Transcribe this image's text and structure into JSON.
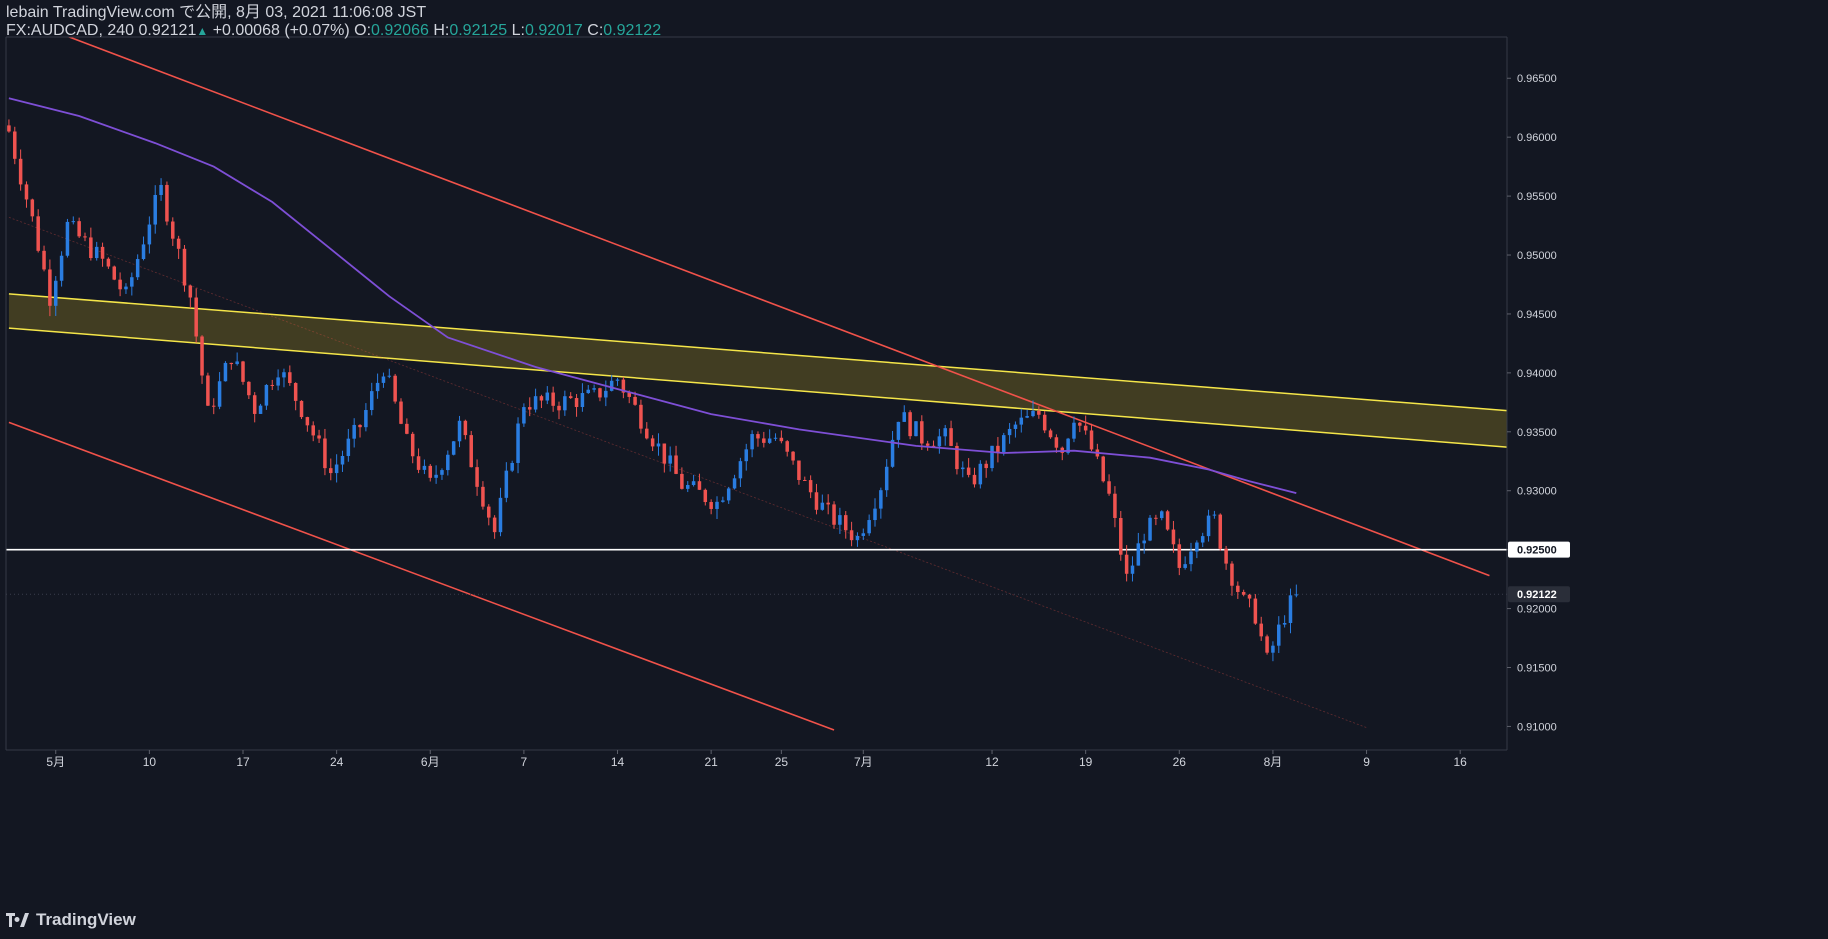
{
  "header": {
    "publish_line": "lebain TradingView.com で公開, 8月 03, 2021 11:06:08 JST",
    "symbol": "FX:AUDCAD, 240",
    "last": "0.92121",
    "change": "+0.00068 (+0.07%)",
    "o_label": "O:",
    "o_value": "0.92066",
    "h_label": "H:",
    "h_value": "0.92125",
    "l_label": "L:",
    "l_value": "0.92017",
    "c_label": "C:",
    "c_value": "0.92122"
  },
  "footer": {
    "brand": "TradingView"
  },
  "colors": {
    "background": "#131722",
    "bull": "#2a7de1",
    "bear": "#ef5350",
    "ma": "#7e4fd6",
    "channel": "#f0524a",
    "zone_fill": "#4a4422",
    "zone_line": "#f5e649",
    "level": "#ffffff"
  },
  "chart_data": {
    "type": "candlestick",
    "symbol": "FX:AUDCAD",
    "timeframe": "240",
    "y_range": [
      0.908,
      0.9685
    ],
    "y_ticks": [
      "0.96500",
      "0.96000",
      "0.95500",
      "0.95000",
      "0.94500",
      "0.94000",
      "0.93500",
      "0.93000",
      "0.92500",
      "0.92000",
      "0.91500",
      "0.91000"
    ],
    "x_ticks": [
      "5月",
      "10",
      "17",
      "24",
      "6月",
      "7",
      "14",
      "21",
      "25",
      "7月",
      "12",
      "19",
      "26",
      "8月",
      "9",
      "16"
    ],
    "level_line": {
      "label": "0.92500",
      "value": 0.925
    },
    "current_price": {
      "label": "0.92122",
      "value": 0.92122
    },
    "anchors": [
      {
        "t": 0,
        "p": 0.9605
      },
      {
        "t": 4,
        "p": 0.953
      },
      {
        "t": 7,
        "p": 0.9465
      },
      {
        "t": 10,
        "p": 0.9525
      },
      {
        "t": 16,
        "p": 0.9495
      },
      {
        "t": 20,
        "p": 0.9465
      },
      {
        "t": 24,
        "p": 0.953
      },
      {
        "t": 26,
        "p": 0.9555
      },
      {
        "t": 31,
        "p": 0.9465
      },
      {
        "t": 34,
        "p": 0.9365
      },
      {
        "t": 38,
        "p": 0.9415
      },
      {
        "t": 42,
        "p": 0.937
      },
      {
        "t": 46,
        "p": 0.9405
      },
      {
        "t": 50,
        "p": 0.937
      },
      {
        "t": 55,
        "p": 0.9315
      },
      {
        "t": 60,
        "p": 0.9355
      },
      {
        "t": 64,
        "p": 0.9405
      },
      {
        "t": 68,
        "p": 0.934
      },
      {
        "t": 72,
        "p": 0.9305
      },
      {
        "t": 77,
        "p": 0.9355
      },
      {
        "t": 83,
        "p": 0.9265
      },
      {
        "t": 88,
        "p": 0.9375
      },
      {
        "t": 94,
        "p": 0.9375
      },
      {
        "t": 100,
        "p": 0.938
      },
      {
        "t": 104,
        "p": 0.9395
      },
      {
        "t": 110,
        "p": 0.9345
      },
      {
        "t": 115,
        "p": 0.9305
      },
      {
        "t": 121,
        "p": 0.929
      },
      {
        "t": 127,
        "p": 0.9345
      },
      {
        "t": 131,
        "p": 0.9345
      },
      {
        "t": 136,
        "p": 0.9305
      },
      {
        "t": 140,
        "p": 0.928
      },
      {
        "t": 145,
        "p": 0.926
      },
      {
        "t": 149,
        "p": 0.9305
      },
      {
        "t": 152,
        "p": 0.9365
      },
      {
        "t": 156,
        "p": 0.9345
      },
      {
        "t": 160,
        "p": 0.9345
      },
      {
        "t": 164,
        "p": 0.9305
      },
      {
        "t": 168,
        "p": 0.933
      },
      {
        "t": 172,
        "p": 0.9355
      },
      {
        "t": 176,
        "p": 0.9365
      },
      {
        "t": 180,
        "p": 0.9335
      },
      {
        "t": 182,
        "p": 0.9365
      },
      {
        "t": 185,
        "p": 0.9335
      },
      {
        "t": 188,
        "p": 0.9295
      },
      {
        "t": 191,
        "p": 0.9225
      },
      {
        "t": 194,
        "p": 0.9265
      },
      {
        "t": 197,
        "p": 0.9275
      },
      {
        "t": 200,
        "p": 0.9235
      },
      {
        "t": 203,
        "p": 0.9265
      },
      {
        "t": 206,
        "p": 0.9275
      },
      {
        "t": 208,
        "p": 0.924
      },
      {
        "t": 211,
        "p": 0.9205
      },
      {
        "t": 213,
        "p": 0.9195
      },
      {
        "t": 215,
        "p": 0.9155
      },
      {
        "t": 218,
        "p": 0.9195
      },
      {
        "t": 220,
        "p": 0.9212
      }
    ],
    "candle_count": 221,
    "moving_average": {
      "name": "MA",
      "points": [
        {
          "t": 0,
          "p": 0.9633
        },
        {
          "t": 12,
          "p": 0.9618
        },
        {
          "t": 25,
          "p": 0.9595
        },
        {
          "t": 35,
          "p": 0.9575
        },
        {
          "t": 45,
          "p": 0.9545
        },
        {
          "t": 55,
          "p": 0.9505
        },
        {
          "t": 65,
          "p": 0.9465
        },
        {
          "t": 75,
          "p": 0.943
        },
        {
          "t": 90,
          "p": 0.9405
        },
        {
          "t": 105,
          "p": 0.9385
        },
        {
          "t": 120,
          "p": 0.9365
        },
        {
          "t": 135,
          "p": 0.9352
        },
        {
          "t": 155,
          "p": 0.9338
        },
        {
          "t": 170,
          "p": 0.9332
        },
        {
          "t": 182,
          "p": 0.9334
        },
        {
          "t": 195,
          "p": 0.9328
        },
        {
          "t": 205,
          "p": 0.9318
        },
        {
          "t": 212,
          "p": 0.9308
        },
        {
          "t": 220,
          "p": 0.9298
        }
      ]
    },
    "trendlines": [
      {
        "name": "upper-channel",
        "from": {
          "t": 5,
          "p": 0.9695
        },
        "to": {
          "t": 253,
          "p": 0.9228
        }
      },
      {
        "name": "lower-channel",
        "from": {
          "t": 0,
          "p": 0.9358
        },
        "to": {
          "t": 141,
          "p": 0.9097
        }
      },
      {
        "name": "mid-channel",
        "from": {
          "t": 0,
          "p": 0.9532
        },
        "to": {
          "t": 232,
          "p": 0.9099
        }
      }
    ],
    "zone": {
      "name": "resistance-zone",
      "upper": {
        "from": {
          "t": 0,
          "p": 0.9467
        },
        "to": {
          "t": 256,
          "p": 0.9368
        }
      },
      "lower": {
        "from": {
          "t": 0,
          "p": 0.9438
        },
        "to": {
          "t": 256,
          "p": 0.9337
        }
      }
    },
    "x_tick_slots": [
      8,
      24,
      40,
      56,
      72,
      88,
      104,
      120,
      132,
      146,
      168,
      184,
      200,
      216,
      232,
      248
    ],
    "x_slot_range": [
      -0.5,
      256
    ]
  }
}
